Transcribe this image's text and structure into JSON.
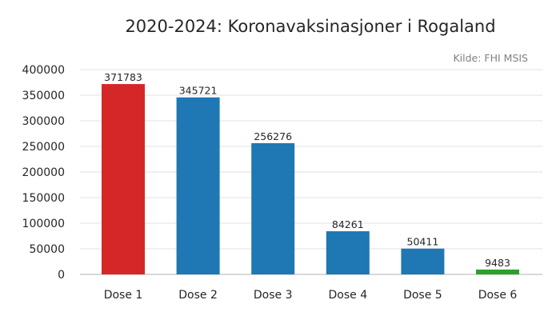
{
  "chart_data": {
    "type": "bar",
    "title": "2020-2024: Koronavaksinasjoner i Rogaland",
    "source": "Kilde: FHI MSIS",
    "categories": [
      "Dose 1",
      "Dose 2",
      "Dose 3",
      "Dose 4",
      "Dose 5",
      "Dose 6"
    ],
    "values": [
      371783,
      345721,
      256276,
      84261,
      50411,
      9483
    ],
    "data_labels": [
      "371783",
      "345721",
      "256276",
      "84261",
      "50411",
      "9483"
    ],
    "bar_colors": [
      "#d62728",
      "#1f77b4",
      "#1f77b4",
      "#1f77b4",
      "#1f77b4",
      "#2ca02c"
    ],
    "ylim": [
      0,
      400000
    ],
    "yticks": [
      0,
      50000,
      100000,
      150000,
      200000,
      250000,
      300000,
      350000,
      400000
    ],
    "ytick_labels": [
      "0",
      "50000",
      "100000",
      "150000",
      "200000",
      "250000",
      "300000",
      "350000",
      "400000"
    ],
    "xlabel": "",
    "ylabel": "",
    "grid": "horizontal"
  }
}
